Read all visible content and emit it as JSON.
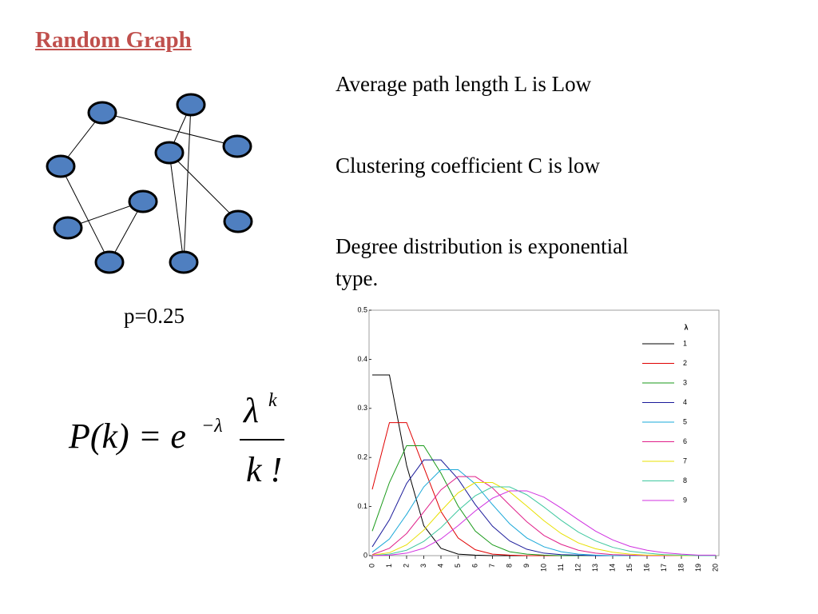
{
  "slide": {
    "title": "Random Graph",
    "bullets": [
      "Average path length L  is Low",
      "Clustering coefficient C is low",
      "Degree distribution is exponential type."
    ],
    "graph_caption": "p=0.25",
    "formula": {
      "lhs": "P(k) = e",
      "exponent": "−λ",
      "numerator": "λ",
      "numerator_exponent": "k",
      "denominator": "k !"
    }
  },
  "chart_data": {
    "type": "line",
    "legend_title": "λ",
    "legend": "upper right",
    "x": [
      0,
      1,
      2,
      3,
      4,
      5,
      6,
      7,
      8,
      9,
      10,
      11,
      12,
      13,
      14,
      15,
      16,
      17,
      18,
      19,
      20
    ],
    "xlim": [
      0,
      20
    ],
    "xticks": [
      0,
      1,
      2,
      3,
      4,
      5,
      6,
      7,
      8,
      9,
      10,
      11,
      12,
      13,
      14,
      15,
      16,
      17,
      18,
      19,
      20
    ],
    "ylim": [
      0,
      0.5
    ],
    "yticks": [
      0,
      0.1,
      0.2,
      0.3,
      0.4,
      0.5
    ],
    "series": [
      {
        "name": "1",
        "color": "#000000",
        "values": [
          0.368,
          0.368,
          0.184,
          0.061,
          0.015,
          0.003,
          0.001,
          0,
          0,
          0,
          0,
          0,
          0,
          0,
          0,
          0,
          0,
          0,
          0,
          0,
          0
        ]
      },
      {
        "name": "2",
        "color": "#e00000",
        "values": [
          0.135,
          0.271,
          0.271,
          0.18,
          0.09,
          0.036,
          0.012,
          0.003,
          0.001,
          0,
          0,
          0,
          0,
          0,
          0,
          0,
          0,
          0,
          0,
          0,
          0
        ]
      },
      {
        "name": "3",
        "color": "#1a9a1a",
        "values": [
          0.05,
          0.149,
          0.224,
          0.224,
          0.168,
          0.101,
          0.05,
          0.022,
          0.008,
          0.003,
          0.001,
          0,
          0,
          0,
          0,
          0,
          0,
          0,
          0,
          0,
          0
        ]
      },
      {
        "name": "4",
        "color": "#1a1a9a",
        "values": [
          0.018,
          0.073,
          0.147,
          0.195,
          0.195,
          0.156,
          0.104,
          0.06,
          0.03,
          0.013,
          0.005,
          0.002,
          0.001,
          0,
          0,
          0,
          0,
          0,
          0,
          0,
          0
        ]
      },
      {
        "name": "5",
        "color": "#1aa8d8",
        "values": [
          0.007,
          0.034,
          0.084,
          0.14,
          0.175,
          0.175,
          0.146,
          0.104,
          0.065,
          0.036,
          0.018,
          0.008,
          0.003,
          0.001,
          0,
          0,
          0,
          0,
          0,
          0,
          0
        ]
      },
      {
        "name": "6",
        "color": "#e0208a",
        "values": [
          0.002,
          0.015,
          0.045,
          0.089,
          0.134,
          0.161,
          0.161,
          0.138,
          0.103,
          0.069,
          0.041,
          0.023,
          0.011,
          0.005,
          0.002,
          0.001,
          0,
          0,
          0,
          0,
          0
        ]
      },
      {
        "name": "7",
        "color": "#e8e000",
        "values": [
          0.001,
          0.006,
          0.022,
          0.052,
          0.091,
          0.128,
          0.149,
          0.149,
          0.13,
          0.101,
          0.071,
          0.045,
          0.026,
          0.014,
          0.007,
          0.003,
          0.001,
          0.001,
          0,
          0,
          0
        ]
      },
      {
        "name": "8",
        "color": "#40c8a0",
        "values": [
          0,
          0.003,
          0.011,
          0.029,
          0.057,
          0.092,
          0.122,
          0.14,
          0.14,
          0.124,
          0.099,
          0.072,
          0.048,
          0.03,
          0.017,
          0.009,
          0.005,
          0.002,
          0.001,
          0,
          0
        ]
      },
      {
        "name": "9",
        "color": "#d030e0",
        "values": [
          0,
          0.001,
          0.005,
          0.015,
          0.034,
          0.061,
          0.091,
          0.117,
          0.132,
          0.132,
          0.119,
          0.097,
          0.073,
          0.05,
          0.032,
          0.019,
          0.011,
          0.006,
          0.003,
          0.001,
          0.001
        ]
      }
    ]
  }
}
